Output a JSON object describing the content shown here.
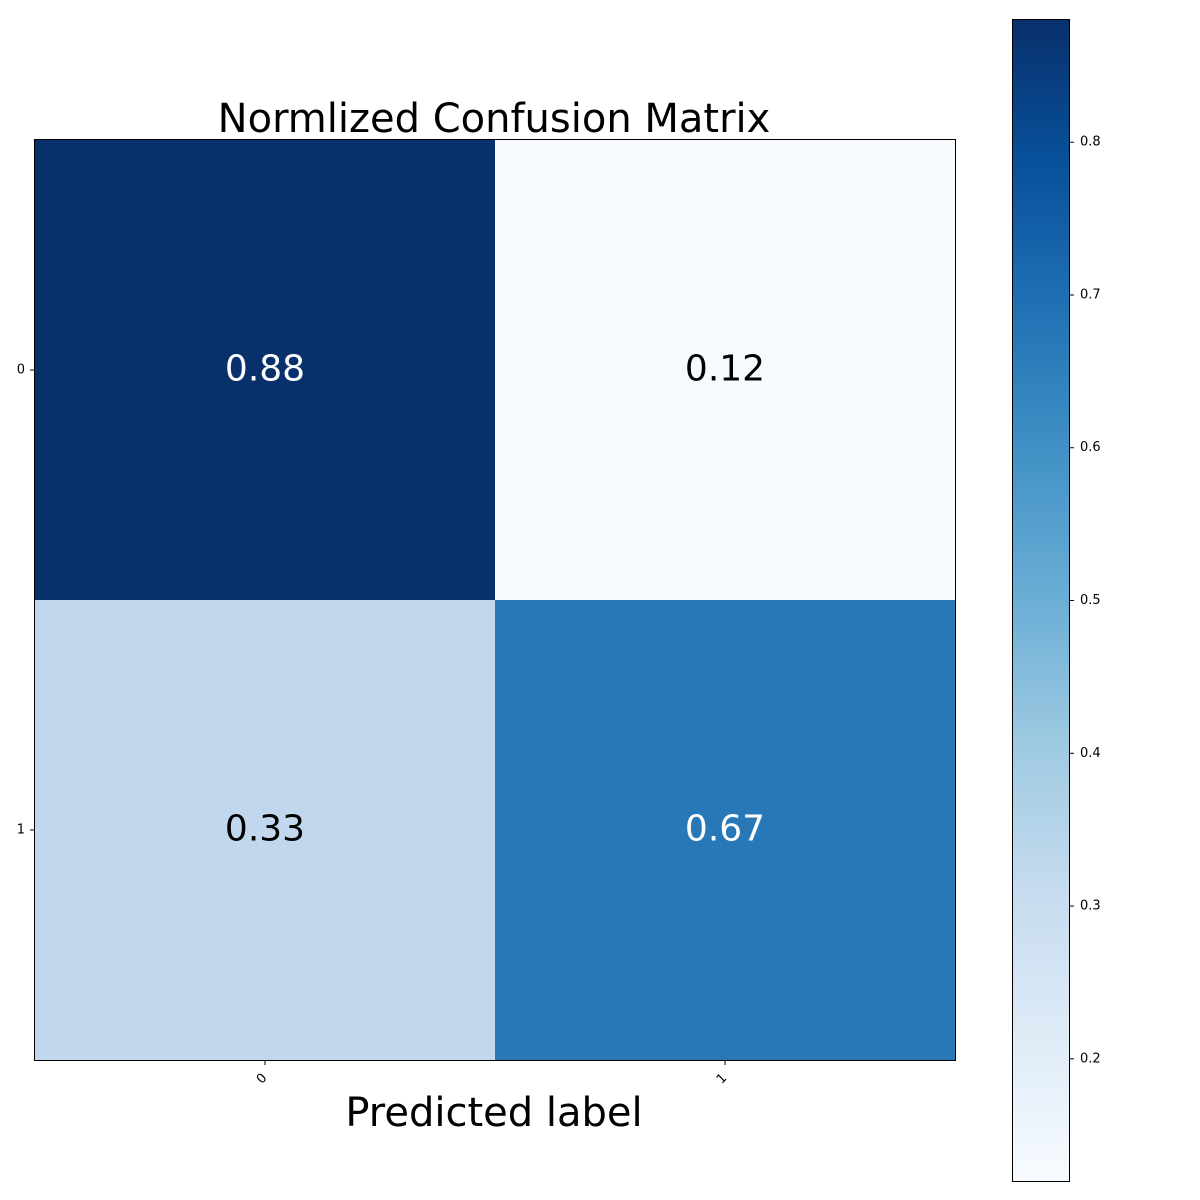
{
  "chart_data": {
    "type": "heatmap",
    "title": "Normlized Confusion Matrix",
    "xlabel": "Predicted label",
    "ylabel": "",
    "x_categories": [
      "0",
      "1"
    ],
    "y_categories": [
      "0",
      "1"
    ],
    "values": [
      [
        0.88,
        0.12
      ],
      [
        0.33,
        0.67
      ]
    ],
    "value_labels": [
      [
        "0.88",
        "0.12"
      ],
      [
        "0.33",
        "0.67"
      ]
    ],
    "colormap": "Blues",
    "colorbar": {
      "range": [
        0.12,
        0.88
      ],
      "ticks": [
        0.2,
        0.3,
        0.4,
        0.5,
        0.6,
        0.7,
        0.8
      ],
      "tick_labels": [
        "0.2",
        "0.3",
        "0.4",
        "0.5",
        "0.6",
        "0.7",
        "0.8"
      ]
    },
    "colors": {
      "cells": [
        [
          "#08306b",
          "#f7fbff"
        ],
        [
          "#c0d7ed",
          "#2878b8"
        ]
      ],
      "text_light": "#ffffff",
      "text_dark": "#000000"
    },
    "grid": false
  }
}
